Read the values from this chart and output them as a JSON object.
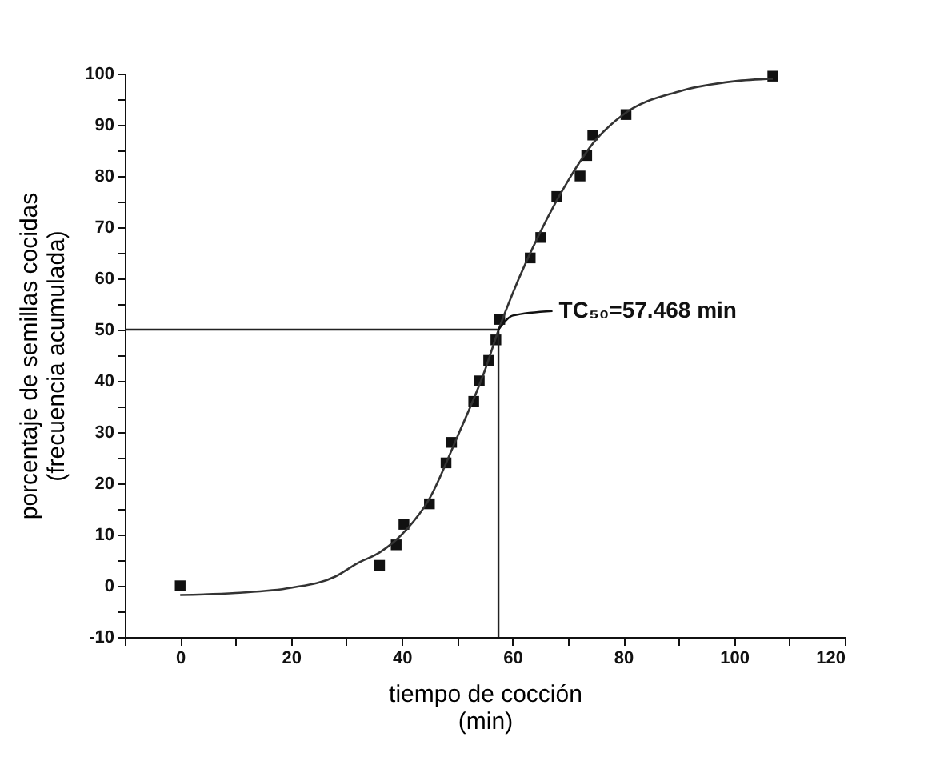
{
  "chart_data": {
    "type": "scatter",
    "xlabel": "tiempo de cocción\n(min)",
    "ylabel": "porcentaje de semillas cocidas\n(frecuencia acumulada)",
    "xlim": [
      -10,
      120
    ],
    "ylim": [
      -10,
      100
    ],
    "xticks": [
      {
        "value": -10,
        "label": null
      },
      0,
      {
        "value": 10,
        "label": null
      },
      20,
      {
        "value": 30,
        "label": null
      },
      40,
      {
        "value": 50,
        "label": null
      },
      60,
      {
        "value": 70,
        "label": null
      },
      80,
      {
        "value": 90,
        "label": null
      },
      100,
      {
        "value": 110,
        "label": null
      },
      120
    ],
    "yticks": [
      -10,
      {
        "value": -5,
        "label": null
      },
      0,
      {
        "value": 5,
        "label": null
      },
      10,
      {
        "value": 15,
        "label": null
      },
      20,
      {
        "value": 25,
        "label": null
      },
      30,
      {
        "value": 35,
        "label": null
      },
      40,
      {
        "value": 45,
        "label": null
      },
      50,
      {
        "value": 55,
        "label": null
      },
      60,
      {
        "value": 65,
        "label": null
      },
      70,
      {
        "value": 75,
        "label": null
      },
      80,
      {
        "value": 85,
        "label": null
      },
      90,
      {
        "value": 95,
        "label": null
      },
      100
    ],
    "series": [
      {
        "marker": "square",
        "color": "#111111",
        "x": [
          0,
          36,
          39,
          40.4,
          45,
          48,
          49,
          53,
          54,
          55.7,
          57,
          57.7,
          63.2,
          65.1,
          68,
          72.2,
          73.4,
          74.5,
          80.5,
          107
        ],
        "values": [
          0,
          4,
          8,
          12,
          16,
          24,
          28,
          36,
          40,
          44,
          48,
          52,
          64,
          68,
          76,
          80,
          84,
          88,
          92,
          99.5
        ]
      },
      {
        "type": "line",
        "marker": "none",
        "line_style": "solid",
        "color": "#333333",
        "x": [
          0,
          10,
          20,
          28,
          32,
          36,
          40,
          45,
          50,
          55,
          57.5,
          60,
          65,
          70,
          75,
          80,
          90,
          100,
          107
        ],
        "values": [
          -1.8,
          -1.4,
          -0.4,
          1.8,
          4.4,
          6.5,
          10,
          17,
          29,
          42,
          50,
          57,
          69,
          79,
          87,
          92,
          96.5,
          98.5,
          99
        ]
      }
    ],
    "ref_lines": [
      {
        "axis": "y",
        "value": 50,
        "color": "#222222",
        "line_style": "solid"
      },
      {
        "axis": "x",
        "value": 57.468,
        "color": "#222222",
        "line_style": "solid"
      }
    ],
    "annotations": [
      {
        "text": "TC₅₀=57.468 min",
        "x": 57.468,
        "y": 50
      }
    ]
  }
}
